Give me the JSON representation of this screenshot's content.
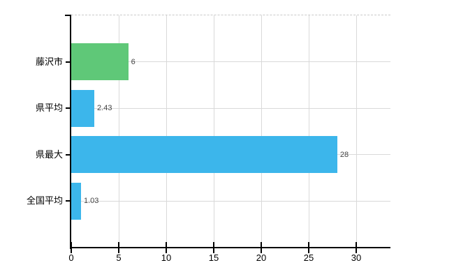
{
  "chart_data": {
    "type": "bar",
    "orientation": "horizontal",
    "title": "",
    "categories": [
      "藤沢市",
      "県平均",
      "県最大",
      "全国平均"
    ],
    "values": [
      6,
      2.43,
      28,
      1.03
    ],
    "value_labels": [
      "6",
      "2.43",
      "28",
      "1.03"
    ],
    "x_ticks": [
      0,
      5,
      10,
      15,
      20,
      25,
      30
    ],
    "x_tick_labels": [
      "0",
      "5",
      "10",
      "15",
      "20",
      "25",
      "30"
    ],
    "xlim": [
      0,
      33.6
    ],
    "grid": true,
    "legend": false,
    "colors": {
      "bars": [
        "#5fc878",
        "#3cb6eb",
        "#3cb6eb",
        "#3cb6eb"
      ],
      "grid": "#d9d9d9",
      "top_border": "#c9c9c9",
      "axis": "#000000",
      "category_label": "#000000",
      "value_label": "#444444",
      "tick_label": "#000000",
      "background": "#ffffff"
    }
  }
}
